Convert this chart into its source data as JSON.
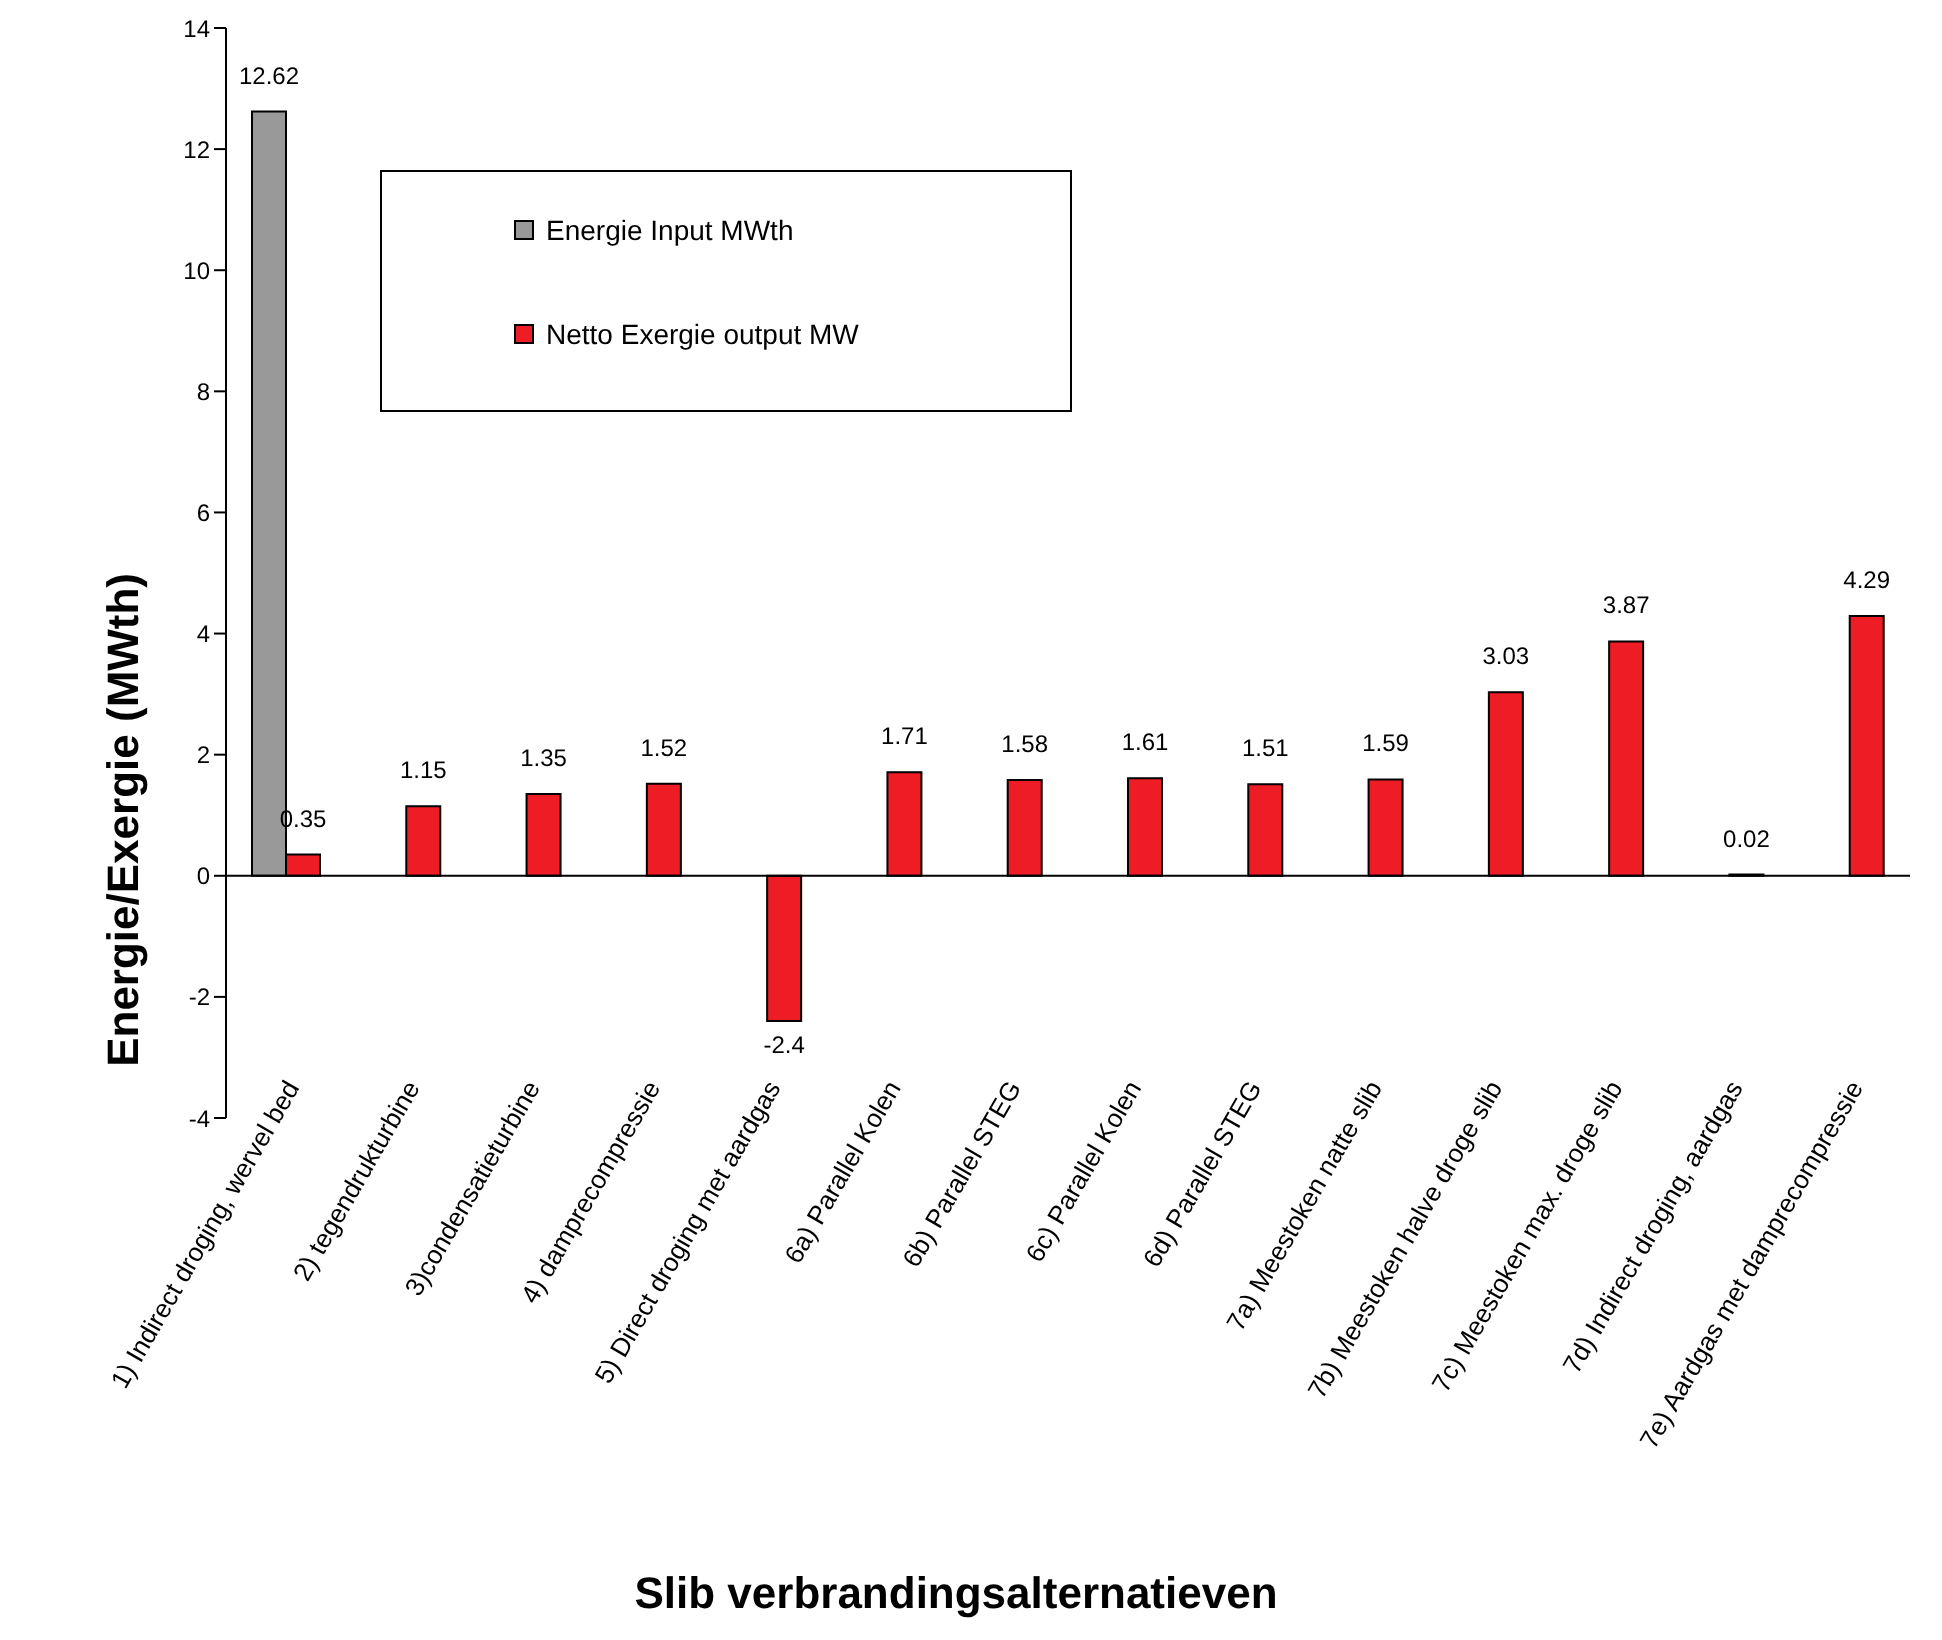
{
  "chart_data": {
    "type": "bar",
    "categories": [
      "1) Indirect droging, wervel bed",
      "2) tegendrukturbine",
      "3)condensatieturbine",
      "4) damprecompressie",
      "5) Direct droging met aardgas",
      "6a) Parallel Kolen",
      "6b) Parallel STEG",
      "6c) Parallel Kolen",
      "6d) Parallel STEG",
      "7a) Meestoken  natte slib",
      "7b) Meestoken halve droge slib",
      "7c) Meestoken max. droge slib",
      "7d) Indirect droging, aardgas",
      "7e) Aardgas met damprecompressie"
    ],
    "series": [
      {
        "name": "Energie Input MWth",
        "color": "#999999",
        "values": [
          12.62,
          null,
          null,
          null,
          null,
          null,
          null,
          null,
          null,
          null,
          null,
          null,
          null,
          null
        ],
        "value_labels": [
          "12.62",
          null,
          null,
          null,
          null,
          null,
          null,
          null,
          null,
          null,
          null,
          null,
          null,
          null
        ]
      },
      {
        "name": "Netto Exergie output MW",
        "color": "#ee1c25",
        "values": [
          0.35,
          1.15,
          1.35,
          1.52,
          -2.4,
          1.71,
          1.58,
          1.61,
          1.51,
          1.59,
          3.03,
          3.87,
          0.02,
          4.29
        ],
        "value_labels": [
          "0.35",
          "1.15",
          "1.35",
          "1.52",
          "-2.4",
          "1.71",
          "1.58",
          "1.61",
          "1.51",
          "1.59",
          "3.03",
          "3.87",
          "0.02",
          "4.29"
        ]
      }
    ],
    "xlabel": "Slib verbrandingsalternatieven",
    "ylabel": "Energie/Exergie (MWth)",
    "ylim": [
      -4,
      14
    ],
    "yticks": [
      -4,
      -2,
      0,
      2,
      4,
      6,
      8,
      10,
      12,
      14
    ],
    "legend": "top left"
  }
}
